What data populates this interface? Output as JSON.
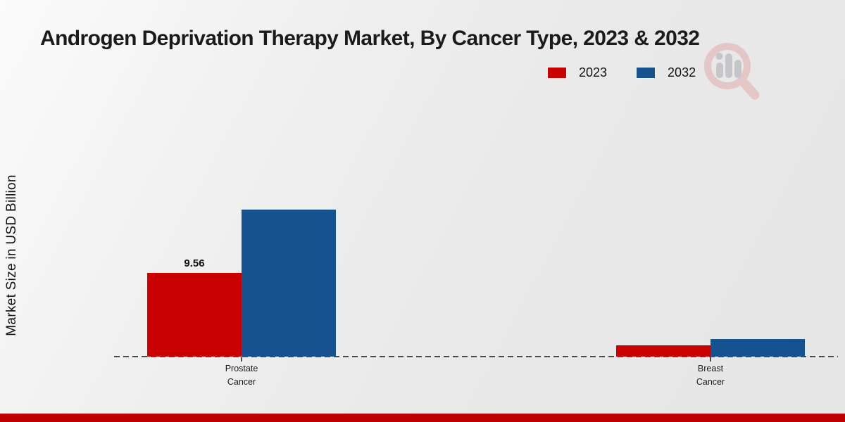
{
  "title": "Androgen Deprivation Therapy Market, By Cancer Type, 2023 & 2032",
  "y_axis_label": "Market Size in USD Billion",
  "footer_bar_color": "#bd0101",
  "watermark": {
    "name": "magnifier-bar-chart-logo",
    "ring_color": "#e3c6c5",
    "bars_color": "#c5c6ca"
  },
  "chart_data": {
    "type": "bar",
    "title": "Androgen Deprivation Therapy Market, By Cancer Type, 2023 & 2032",
    "xlabel": "",
    "ylabel": "Market Size in USD Billion",
    "categories": [
      "Prostate Cancer",
      "Breast Cancer"
    ],
    "series": [
      {
        "name": "2023",
        "color": "#c90101",
        "values": [
          9.56,
          1.3
        ],
        "value_labels": [
          "9.56",
          ""
        ]
      },
      {
        "name": "2032",
        "color": "#175290",
        "values": [
          16.8,
          2.0
        ],
        "value_labels": [
          "",
          ""
        ]
      }
    ],
    "ylim": [
      0,
      28.6
    ],
    "grid": false,
    "legend_position": "top-right",
    "baseline_style": "dashed"
  }
}
